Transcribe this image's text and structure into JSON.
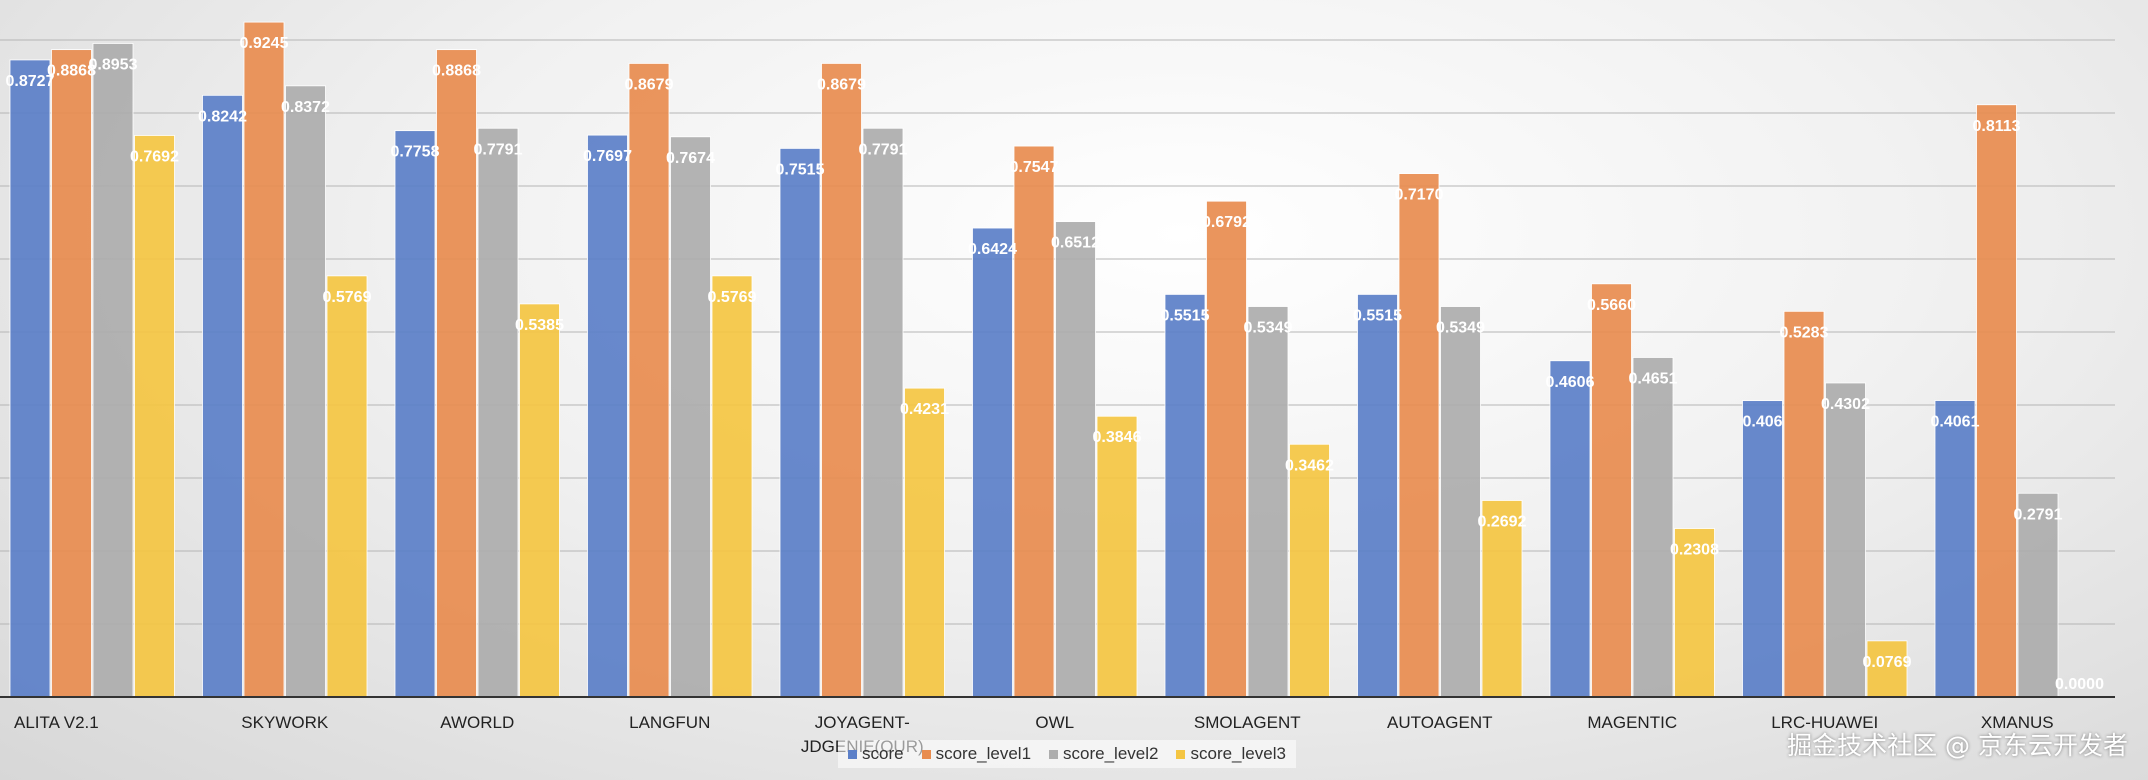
{
  "chart_data": {
    "type": "bar",
    "title": "",
    "xlabel": "",
    "ylabel": "",
    "ylim": [
      0,
      1
    ],
    "grid": true,
    "legend": "bottom-center",
    "categories": [
      "ALITA V2.1",
      "SKYWORK",
      "AWORLD",
      "LANGFUN",
      "JOYAGENT-\nJDGENIE(OUR)",
      "OWL",
      "SMOLAGENT",
      "AUTOAGENT",
      "MAGENTIC",
      "LRC-HUAWEI",
      "XMANUS"
    ],
    "series": [
      {
        "name": "score",
        "color": "#5b7fc8",
        "values": [
          0.8727,
          0.8242,
          0.7758,
          0.7697,
          0.7515,
          0.6424,
          0.5515,
          0.5515,
          0.4606,
          0.406,
          0.4061
        ],
        "labels": [
          "0.8727",
          "0.8242",
          "0.7758",
          "0.7697",
          "0.7515",
          "0.6424",
          "0.5515",
          "0.5515",
          "0.4606",
          "0.406",
          "0.4061"
        ]
      },
      {
        "name": "score_level1",
        "color": "#e88c4f",
        "values": [
          0.8868,
          0.9245,
          0.8868,
          0.8679,
          0.8679,
          0.7547,
          0.6792,
          0.717,
          0.566,
          0.5283,
          0.8113
        ],
        "labels": [
          "0.8868",
          "0.9245",
          "0.8868",
          "0.8679",
          "0.8679",
          "0.7547",
          "0.6792",
          "0.7170",
          "0.5660",
          "0.5283",
          "0.8113"
        ]
      },
      {
        "name": "score_level2",
        "color": "#adadad",
        "values": [
          0.8953,
          0.8372,
          0.7791,
          0.7674,
          0.7791,
          0.6512,
          0.5349,
          0.5349,
          0.4651,
          0.4302,
          0.2791
        ],
        "labels": [
          "0.8953",
          "0.8372",
          "0.7791",
          "0.7674",
          "0.7791",
          "0.6512",
          "0.5349",
          "0.5349",
          "0.4651",
          "0.4302",
          "0.2791"
        ]
      },
      {
        "name": "score_level3",
        "color": "#f4c542",
        "values": [
          0.7692,
          0.5769,
          0.5385,
          0.5769,
          0.4231,
          0.3846,
          0.3462,
          0.2692,
          0.2308,
          0.0769,
          0.0
        ],
        "labels": [
          "0.7692",
          "0.5769",
          "0.5385",
          "0.5769",
          "0.4231",
          "0.3846",
          "0.3462",
          "0.2692",
          "0.2308",
          "0.0769",
          "0.0000"
        ]
      }
    ]
  },
  "watermark": "掘金技术社区 @ 京东云开发者"
}
